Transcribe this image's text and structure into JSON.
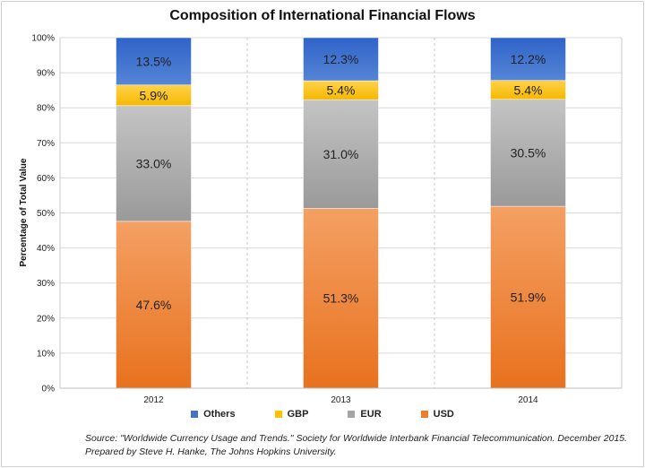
{
  "chart_data": {
    "type": "bar",
    "stacked": true,
    "title": "Composition of International Financial Flows",
    "xlabel": "",
    "ylabel": "Percentage of Total Value",
    "ylim": [
      0,
      100
    ],
    "yticks": [
      "0%",
      "10%",
      "20%",
      "30%",
      "40%",
      "50%",
      "60%",
      "70%",
      "80%",
      "90%",
      "100%"
    ],
    "categories": [
      "2012",
      "2013",
      "2014"
    ],
    "series": [
      {
        "name": "USD",
        "color": "#ED7D31",
        "values": [
          47.6,
          51.3,
          51.9
        ],
        "labels": [
          "47.6%",
          "51.3%",
          "51.9%"
        ]
      },
      {
        "name": "EUR",
        "color": "#A5A5A5",
        "values": [
          33.0,
          31.0,
          30.5
        ],
        "labels": [
          "33.0%",
          "31.0%",
          "30.5%"
        ]
      },
      {
        "name": "GBP",
        "color": "#FFC000",
        "values": [
          5.9,
          5.4,
          5.4
        ],
        "labels": [
          "5.9%",
          "5.4%",
          "5.4%"
        ]
      },
      {
        "name": "Others",
        "color": "#4472C4",
        "values": [
          13.5,
          12.3,
          12.2
        ],
        "labels": [
          "13.5%",
          "12.3%",
          "12.2%"
        ]
      }
    ],
    "legend": [
      "Others",
      "GBP",
      "EUR",
      "USD"
    ],
    "legend_position": "bottom",
    "grid": true
  },
  "source": {
    "line1": "Source: \"Worldwide Currency Usage and Trends.\" Society for Worldwide Interbank Financial Telecommunication. December 2015.",
    "line2": "Prepared by Steve H. Hanke, The Johns Hopkins University."
  }
}
